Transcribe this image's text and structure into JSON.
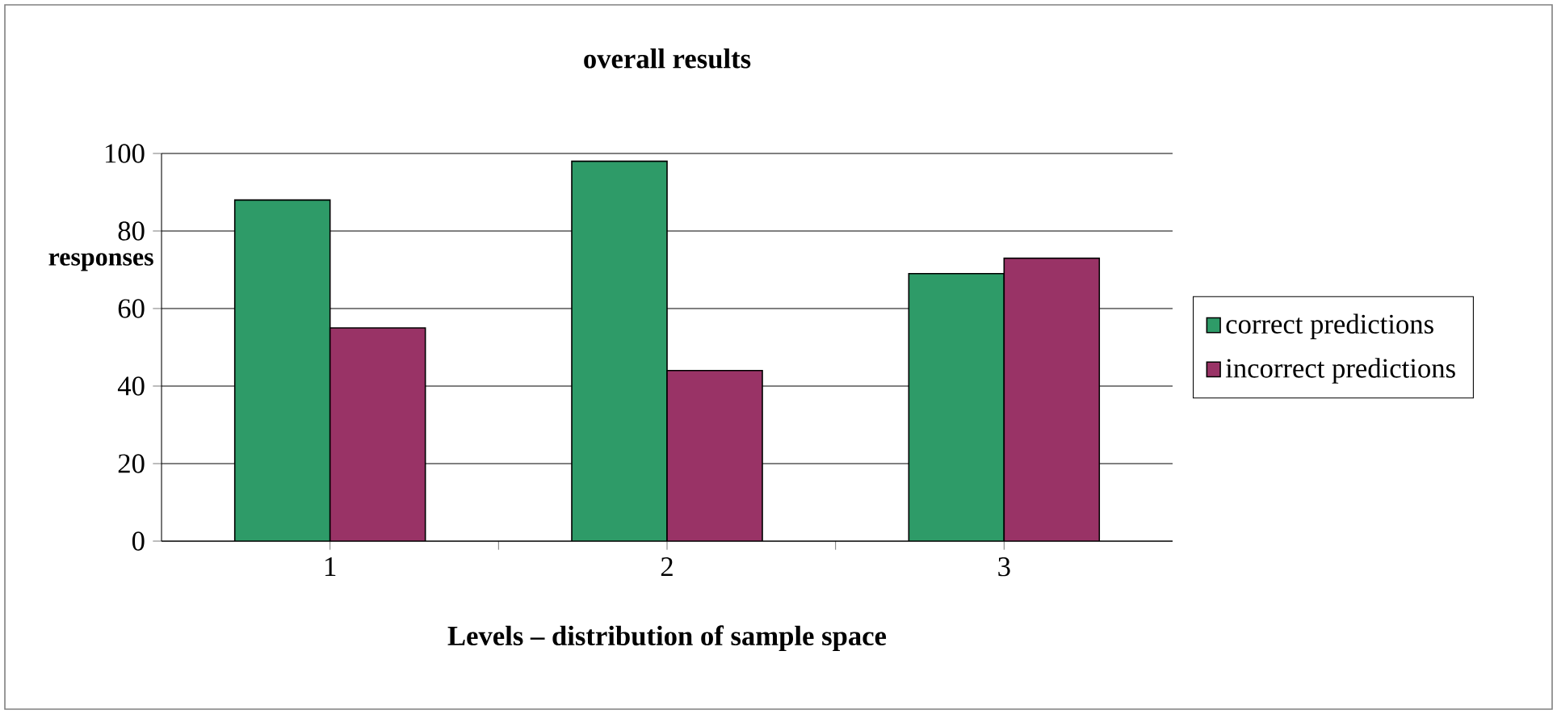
{
  "chart_data": {
    "type": "bar",
    "title": "overall results",
    "xlabel": "Levels – distribution of sample space",
    "ylabel": "responses",
    "categories": [
      "1",
      "2",
      "3"
    ],
    "series": [
      {
        "name": "correct predictions",
        "color": "#2e9b68",
        "values": [
          88,
          98,
          69
        ]
      },
      {
        "name": "incorrect predictions",
        "color": "#993366",
        "values": [
          55,
          44,
          73
        ]
      }
    ],
    "ylim": [
      0,
      100
    ],
    "yticks": [
      0,
      20,
      40,
      60,
      80,
      100
    ],
    "grid": "y",
    "legend": "right"
  }
}
